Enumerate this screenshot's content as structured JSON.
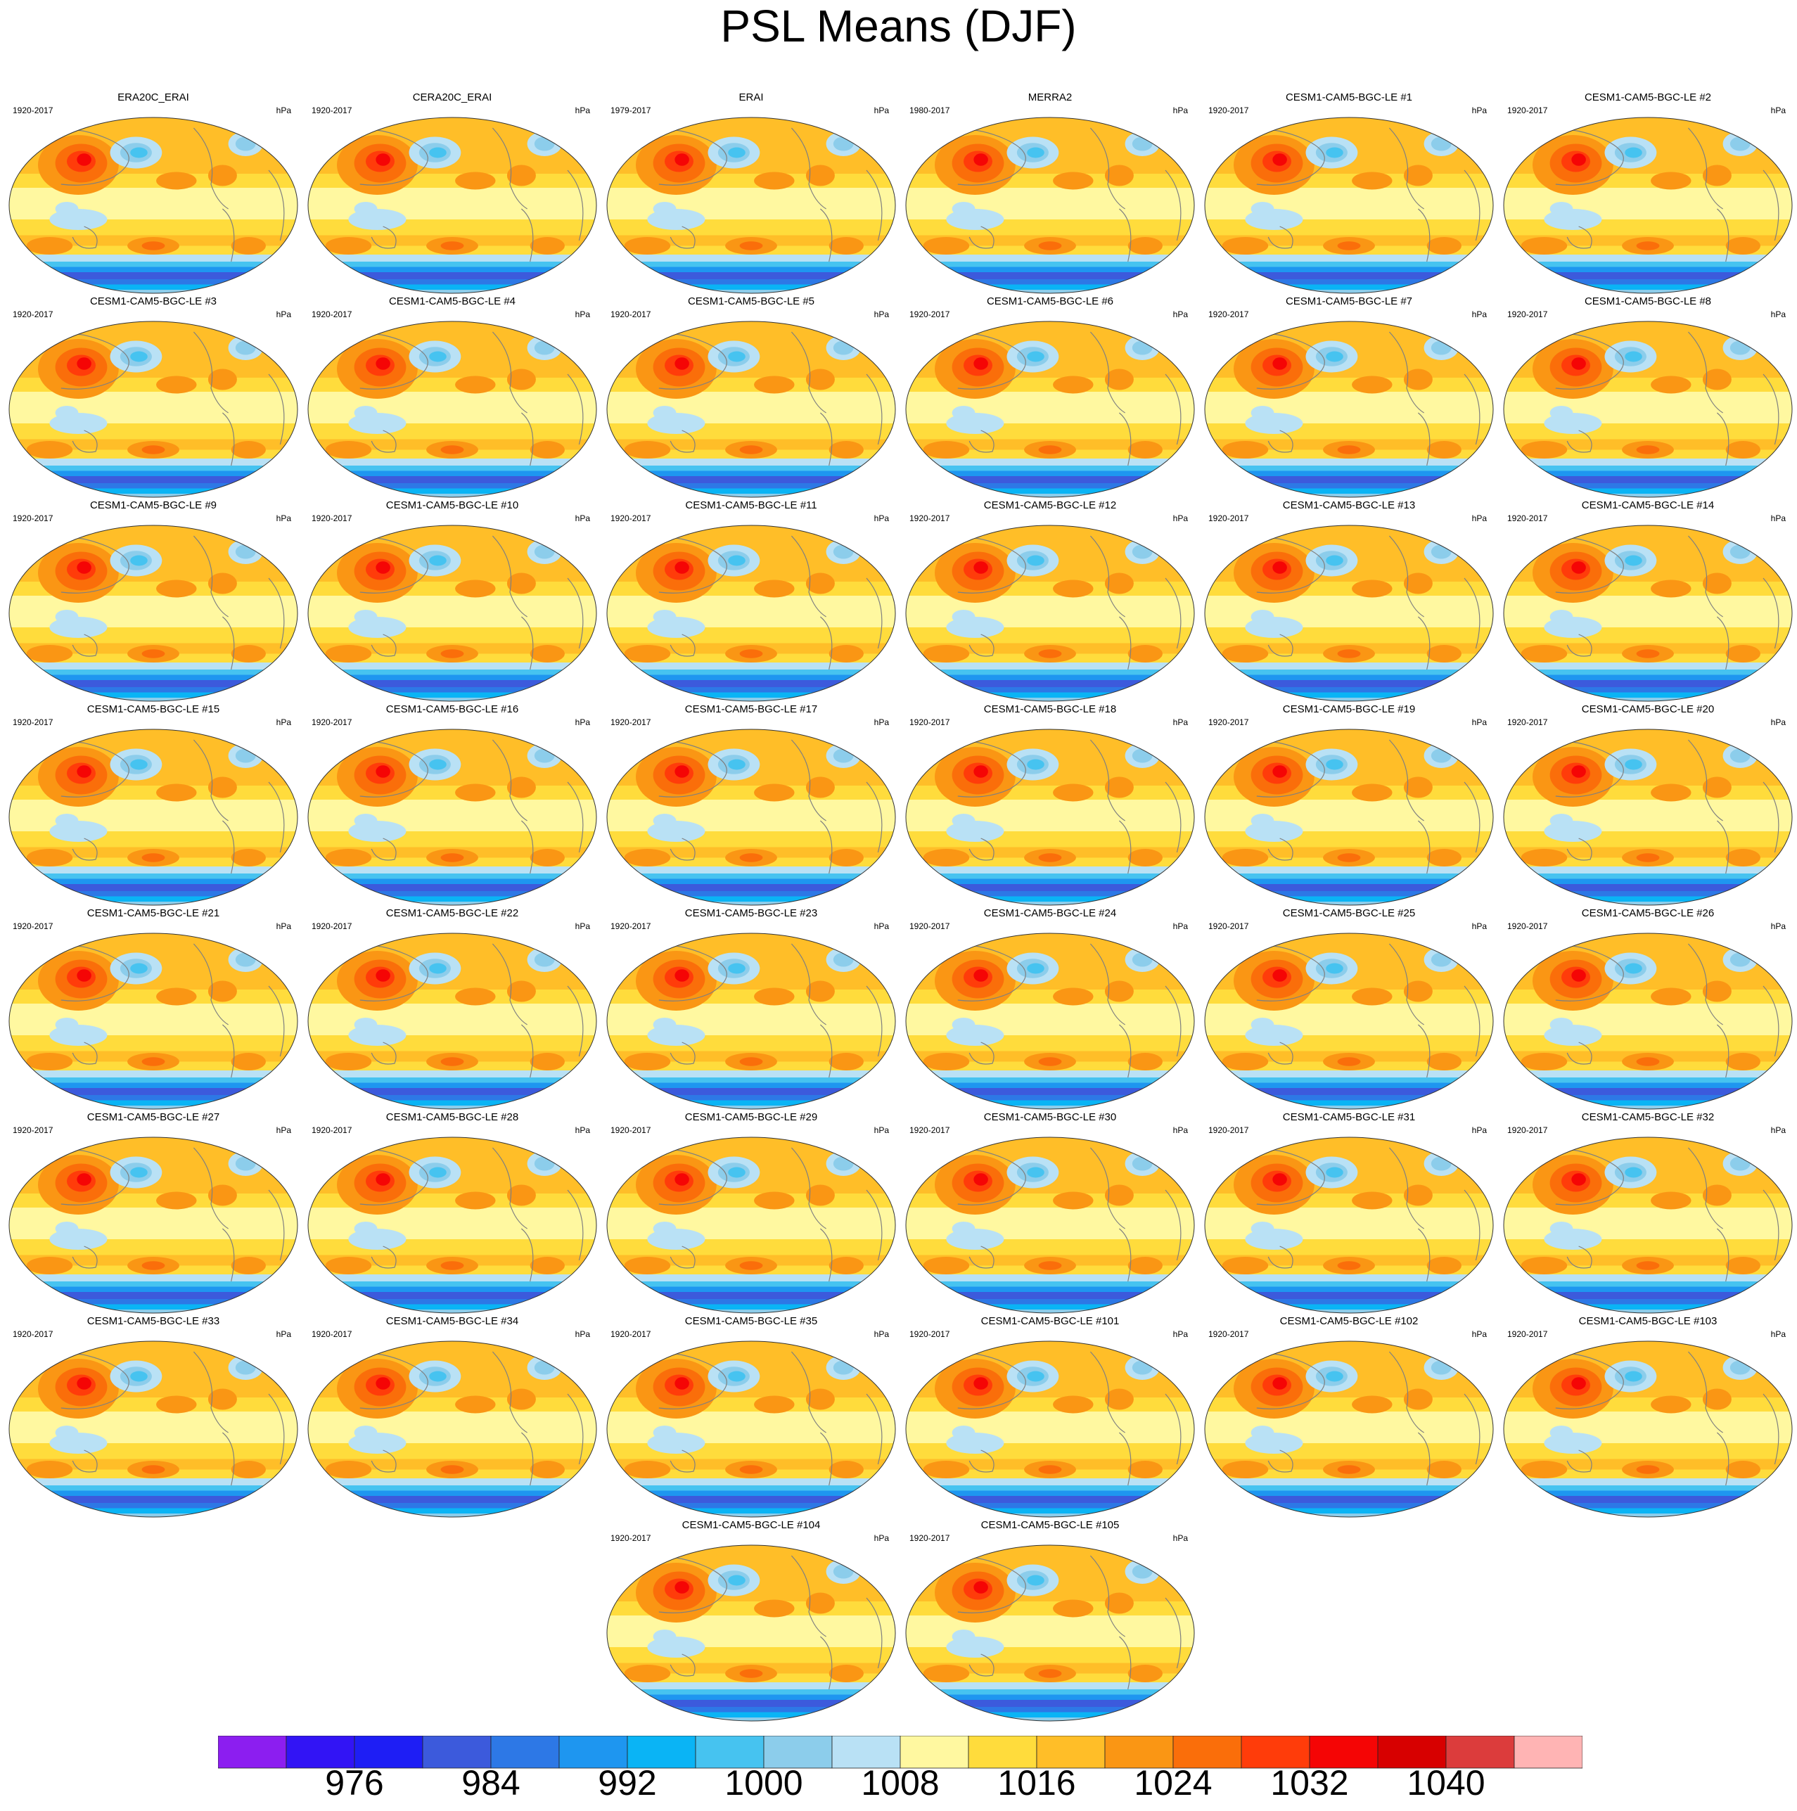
{
  "title": "PSL Means (DJF)",
  "units": "hPa",
  "colors": {
    "levels": [
      "#8c1ef0",
      "#3214f5",
      "#1e1ef5",
      "#3c5adc",
      "#2d78e6",
      "#1e96f0",
      "#0ab4f5",
      "#46c3f0",
      "#8ccdeb",
      "#b9e1f5",
      "#fff8a0",
      "#ffdc3c",
      "#ffbe28",
      "#fa9614",
      "#fa6e0a",
      "#ff3c0a",
      "#f50505",
      "#d70000",
      "#dc3c3c",
      "#ffb4b4"
    ],
    "coast": "#7f7f7f"
  },
  "colorbar": {
    "labels": [
      "976",
      "984",
      "992",
      "1000",
      "1008",
      "1016",
      "1024",
      "1032",
      "1040"
    ]
  },
  "chart_data": {
    "type": "heatmap",
    "variable": "PSL",
    "season": "DJF",
    "units": "hPa",
    "contour_levels": [
      972,
      976,
      980,
      984,
      988,
      992,
      996,
      1000,
      1004,
      1008,
      1012,
      1016,
      1020,
      1024,
      1028,
      1032,
      1036,
      1040,
      1044
    ],
    "panels": [
      {
        "title": "ERA20C_ERAI",
        "years": "1920-2017"
      },
      {
        "title": "CERA20C_ERAI",
        "years": "1920-2017"
      },
      {
        "title": "ERAI",
        "years": "1979-2017"
      },
      {
        "title": "MERRA2",
        "years": "1980-2017"
      },
      {
        "title": "CESM1-CAM5-BGC-LE #1",
        "years": "1920-2017"
      },
      {
        "title": "CESM1-CAM5-BGC-LE #2",
        "years": "1920-2017"
      },
      {
        "title": "CESM1-CAM5-BGC-LE #3",
        "years": "1920-2017"
      },
      {
        "title": "CESM1-CAM5-BGC-LE #4",
        "years": "1920-2017"
      },
      {
        "title": "CESM1-CAM5-BGC-LE #5",
        "years": "1920-2017"
      },
      {
        "title": "CESM1-CAM5-BGC-LE #6",
        "years": "1920-2017"
      },
      {
        "title": "CESM1-CAM5-BGC-LE #7",
        "years": "1920-2017"
      },
      {
        "title": "CESM1-CAM5-BGC-LE #8",
        "years": "1920-2017"
      },
      {
        "title": "CESM1-CAM5-BGC-LE #9",
        "years": "1920-2017"
      },
      {
        "title": "CESM1-CAM5-BGC-LE #10",
        "years": "1920-2017"
      },
      {
        "title": "CESM1-CAM5-BGC-LE #11",
        "years": "1920-2017"
      },
      {
        "title": "CESM1-CAM5-BGC-LE #12",
        "years": "1920-2017"
      },
      {
        "title": "CESM1-CAM5-BGC-LE #13",
        "years": "1920-2017"
      },
      {
        "title": "CESM1-CAM5-BGC-LE #14",
        "years": "1920-2017"
      },
      {
        "title": "CESM1-CAM5-BGC-LE #15",
        "years": "1920-2017"
      },
      {
        "title": "CESM1-CAM5-BGC-LE #16",
        "years": "1920-2017"
      },
      {
        "title": "CESM1-CAM5-BGC-LE #17",
        "years": "1920-2017"
      },
      {
        "title": "CESM1-CAM5-BGC-LE #18",
        "years": "1920-2017"
      },
      {
        "title": "CESM1-CAM5-BGC-LE #19",
        "years": "1920-2017"
      },
      {
        "title": "CESM1-CAM5-BGC-LE #20",
        "years": "1920-2017"
      },
      {
        "title": "CESM1-CAM5-BGC-LE #21",
        "years": "1920-2017"
      },
      {
        "title": "CESM1-CAM5-BGC-LE #22",
        "years": "1920-2017"
      },
      {
        "title": "CESM1-CAM5-BGC-LE #23",
        "years": "1920-2017"
      },
      {
        "title": "CESM1-CAM5-BGC-LE #24",
        "years": "1920-2017"
      },
      {
        "title": "CESM1-CAM5-BGC-LE #25",
        "years": "1920-2017"
      },
      {
        "title": "CESM1-CAM5-BGC-LE #26",
        "years": "1920-2017"
      },
      {
        "title": "CESM1-CAM5-BGC-LE #27",
        "years": "1920-2017"
      },
      {
        "title": "CESM1-CAM5-BGC-LE #28",
        "years": "1920-2017"
      },
      {
        "title": "CESM1-CAM5-BGC-LE #29",
        "years": "1920-2017"
      },
      {
        "title": "CESM1-CAM5-BGC-LE #30",
        "years": "1920-2017"
      },
      {
        "title": "CESM1-CAM5-BGC-LE #31",
        "years": "1920-2017"
      },
      {
        "title": "CESM1-CAM5-BGC-LE #32",
        "years": "1920-2017"
      },
      {
        "title": "CESM1-CAM5-BGC-LE #33",
        "years": "1920-2017"
      },
      {
        "title": "CESM1-CAM5-BGC-LE #34",
        "years": "1920-2017"
      },
      {
        "title": "CESM1-CAM5-BGC-LE #35",
        "years": "1920-2017"
      },
      {
        "title": "CESM1-CAM5-BGC-LE #101",
        "years": "1920-2017"
      },
      {
        "title": "CESM1-CAM5-BGC-LE #102",
        "years": "1920-2017"
      },
      {
        "title": "CESM1-CAM5-BGC-LE #103",
        "years": "1920-2017"
      },
      {
        "title": "CESM1-CAM5-BGC-LE #104",
        "years": "1920-2017"
      },
      {
        "title": "CESM1-CAM5-BGC-LE #105",
        "years": "1920-2017"
      }
    ]
  }
}
